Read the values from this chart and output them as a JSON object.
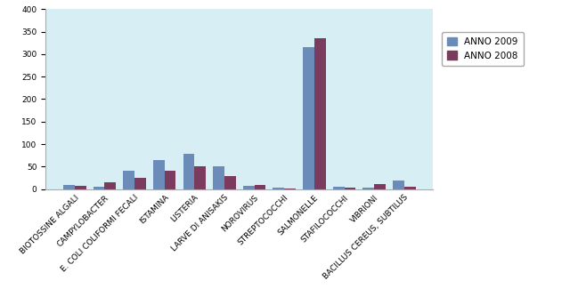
{
  "categories": [
    "BIOTOSSINE ALGALI",
    "CAMPYLOBACTER",
    "E. COLI COLIFORMI FECALI",
    "ISTAMINA",
    "LISTERIA",
    "LARVE DI ANISAKIS",
    "NOROVIRUS",
    "STREPTOCOCCHI",
    "SALMONELLE",
    "STAFILOCOCCHI",
    "VIBRIONI",
    "BACILLUS CEREUS, SUBTILUS"
  ],
  "anno2009": [
    10,
    5,
    40,
    65,
    78,
    50,
    8,
    3,
    315,
    5,
    3,
    20
  ],
  "anno2008": [
    8,
    15,
    25,
    40,
    50,
    28,
    9,
    2,
    335,
    4,
    12,
    6
  ],
  "color_2009": "#6B8CB8",
  "color_2008": "#7B3B5E",
  "background_color": "#D8EEF5",
  "figure_background": "#FFFFFF",
  "ylim": [
    0,
    400
  ],
  "yticks": [
    0,
    50,
    100,
    150,
    200,
    250,
    300,
    350,
    400
  ],
  "legend_2009": "ANNO 2009",
  "legend_2008": "ANNO 2008",
  "bar_width": 0.38,
  "tick_fontsize": 6.5,
  "legend_fontsize": 7.5,
  "xlabel_rotation": 45
}
